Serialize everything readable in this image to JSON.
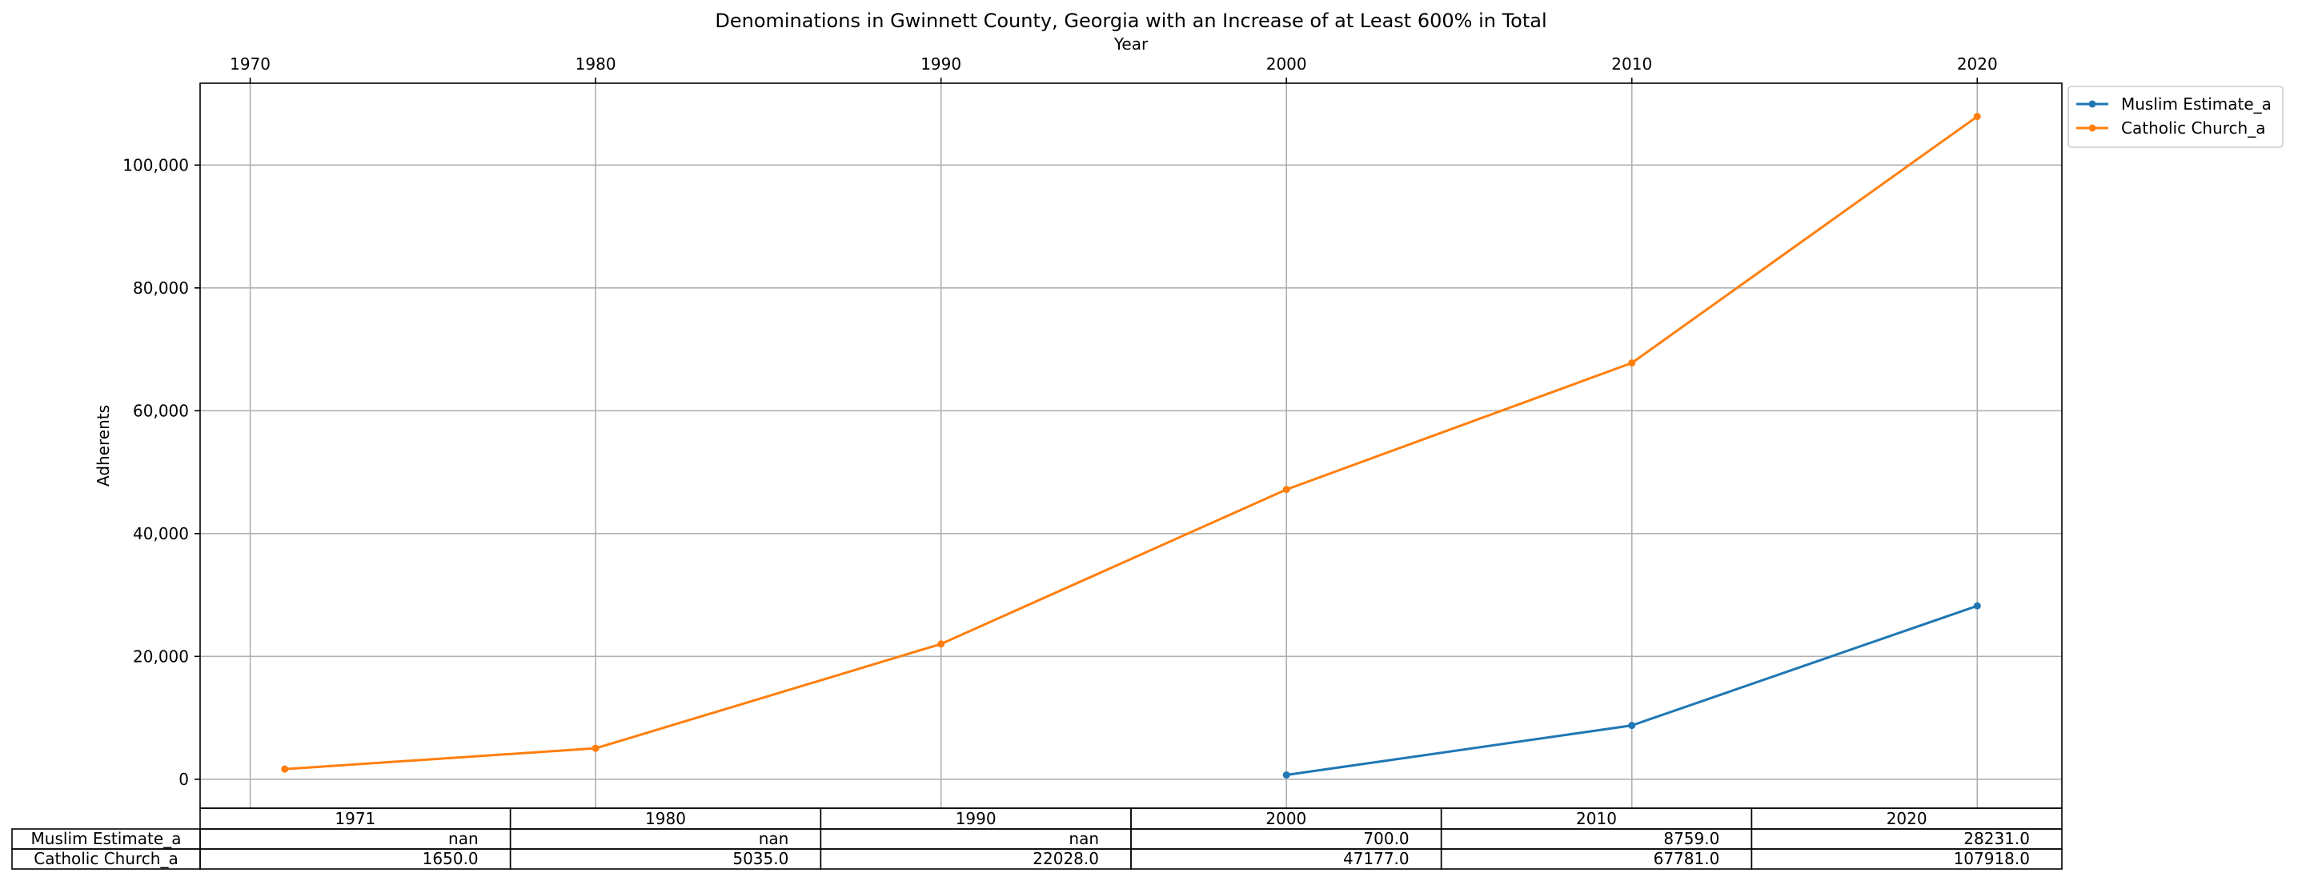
{
  "chart_data": {
    "type": "line",
    "title": "Denominations in Gwinnett County, Georgia with an Increase of at Least 600% in Total",
    "xlabel": "Year",
    "ylabel": "Adherents",
    "x": [
      1971,
      1980,
      1990,
      2000,
      2010,
      2020
    ],
    "x_ticks": [
      1970,
      1980,
      1990,
      2000,
      2010,
      2020
    ],
    "x_tick_labels": [
      "1970",
      "1980",
      "1990",
      "2000",
      "2010",
      "2020"
    ],
    "xlim": [
      1968.55,
      2022.45
    ],
    "y_ticks": [
      0,
      20000,
      40000,
      60000,
      80000,
      100000
    ],
    "y_tick_labels": [
      "0",
      "20,000",
      "40,000",
      "60,000",
      "80,000",
      "100,000"
    ],
    "ylim": [
      -4713,
      113331
    ],
    "grid": true,
    "legend": "outside upper-right",
    "x_axis_position": "top",
    "series": [
      {
        "name": "Muslim Estimate_a",
        "color": "#1f77b4",
        "values": [
          null,
          null,
          null,
          700,
          8759,
          28231
        ]
      },
      {
        "name": "Catholic Church_a",
        "color": "#ff7f0e",
        "values": [
          1650,
          5035,
          22028,
          47177,
          67781,
          107918
        ]
      }
    ],
    "table": {
      "columns": [
        "1971",
        "1980",
        "1990",
        "2000",
        "2010",
        "2020"
      ],
      "rows": [
        {
          "label": "Muslim Estimate_a",
          "cells": [
            "nan",
            "nan",
            "nan",
            "700.0",
            "8759.0",
            "28231.0"
          ]
        },
        {
          "label": "Catholic Church_a",
          "cells": [
            "1650.0",
            "5035.0",
            "22028.0",
            "47177.0",
            "67781.0",
            "107918.0"
          ]
        }
      ]
    }
  }
}
